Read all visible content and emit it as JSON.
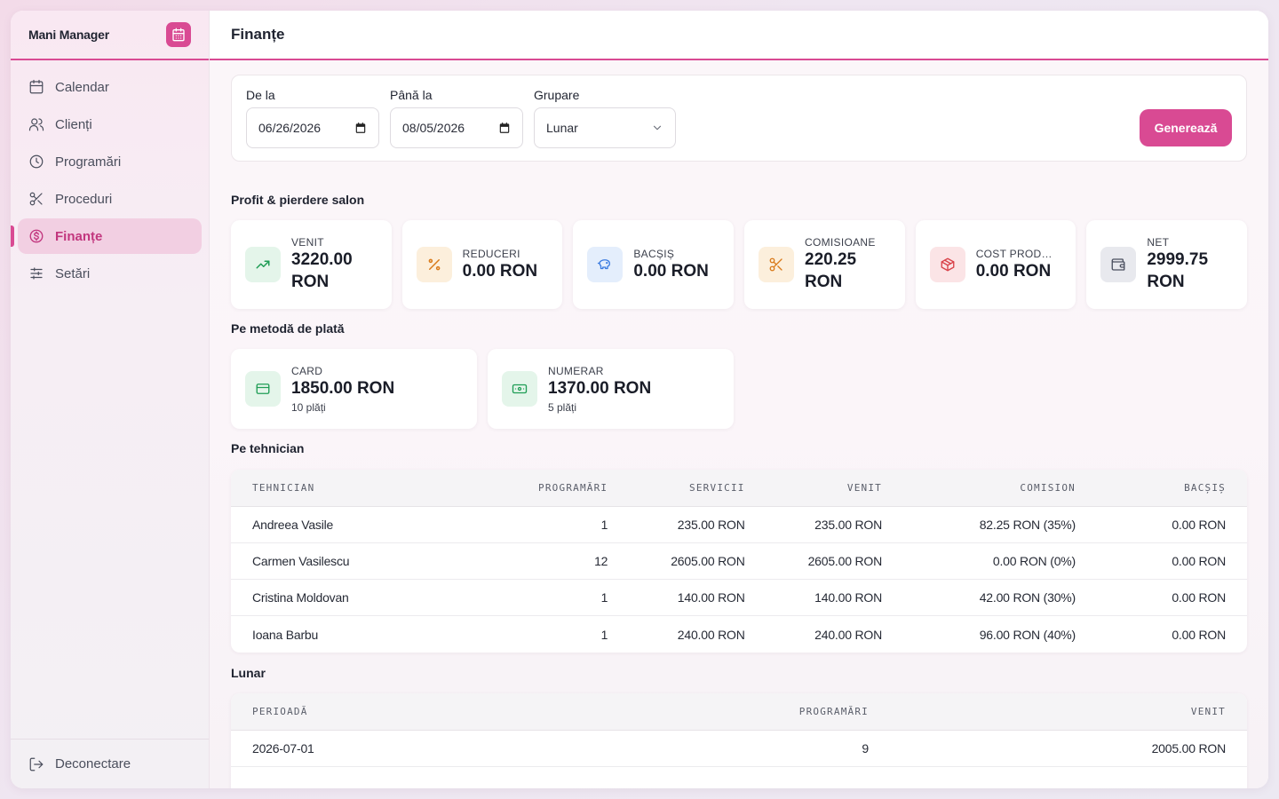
{
  "app": {
    "name": "Mani Manager"
  },
  "sidebar": {
    "items": [
      {
        "label": "Calendar",
        "icon": "calendar-icon"
      },
      {
        "label": "Clienți",
        "icon": "users-icon"
      },
      {
        "label": "Programări",
        "icon": "clock-icon"
      },
      {
        "label": "Proceduri",
        "icon": "scissors-icon"
      },
      {
        "label": "Finanțe",
        "icon": "dollar-circle-icon",
        "active": true
      },
      {
        "label": "Setări",
        "icon": "sliders-icon"
      }
    ],
    "logout_label": "Deconectare"
  },
  "header": {
    "title": "Finanțe"
  },
  "filters": {
    "from_label": "De la",
    "from_value": "06/26/2026",
    "to_label": "Până la",
    "to_value": "08/05/2026",
    "group_label": "Grupare",
    "group_value": "Lunar",
    "generate_label": "Generează"
  },
  "profit": {
    "title": "Profit & pierdere salon",
    "cards": [
      {
        "label": "VENIT",
        "value": "3220.00 RON",
        "icon": "trend-up-icon",
        "color": "#1f9d55",
        "bg": "#e4f5ea"
      },
      {
        "label": "REDUCERI",
        "value": "0.00 RON",
        "icon": "percent-icon",
        "color": "#d97a1a",
        "bg": "#fcefdc"
      },
      {
        "label": "BACȘIȘ",
        "value": "0.00 RON",
        "icon": "piggy-bank-icon",
        "color": "#3b7be0",
        "bg": "#e4eefc"
      },
      {
        "label": "COMISIOANE",
        "value": "220.25 RON",
        "icon": "scissors-icon",
        "color": "#d97a1a",
        "bg": "#fcefdc"
      },
      {
        "label": "COST PRODUSE",
        "value": "0.00 RON",
        "icon": "box-icon",
        "color": "#d9434a",
        "bg": "#fbe4e6"
      },
      {
        "label": "NET",
        "value": "2999.75 RON",
        "icon": "wallet-icon",
        "color": "#4b5060",
        "bg": "#e8e9ee"
      }
    ]
  },
  "payments": {
    "title": "Pe metodă de plată",
    "cards": [
      {
        "label": "CARD",
        "value": "1850.00 RON",
        "sub": "10 plăți",
        "icon": "credit-card-icon",
        "color": "#1f9d55",
        "bg": "#e4f5ea"
      },
      {
        "label": "NUMERAR",
        "value": "1370.00 RON",
        "sub": "5 plăți",
        "icon": "cash-icon",
        "color": "#1f9d55",
        "bg": "#e4f5ea"
      }
    ]
  },
  "technicians": {
    "title": "Pe tehnician",
    "headers": [
      "TEHNICIAN",
      "PROGRAMĂRI",
      "SERVICII",
      "VENIT",
      "COMISION",
      "BACȘIȘ"
    ],
    "rows": [
      [
        "Andreea Vasile",
        "1",
        "235.00 RON",
        "235.00 RON",
        "82.25 RON (35%)",
        "0.00 RON"
      ],
      [
        "Carmen Vasilescu",
        "12",
        "2605.00 RON",
        "2605.00 RON",
        "0.00 RON (0%)",
        "0.00 RON"
      ],
      [
        "Cristina Moldovan",
        "1",
        "140.00 RON",
        "140.00 RON",
        "42.00 RON (30%)",
        "0.00 RON"
      ],
      [
        "Ioana Barbu",
        "1",
        "240.00 RON",
        "240.00 RON",
        "96.00 RON (40%)",
        "0.00 RON"
      ]
    ]
  },
  "monthly": {
    "title": "Lunar",
    "headers": [
      "PERIOADĂ",
      "PROGRAMĂRI",
      "VENIT"
    ],
    "rows": [
      [
        "2026-07-01",
        "9",
        "2005.00 RON"
      ]
    ]
  },
  "colors": {
    "accent": "#d94a93"
  }
}
